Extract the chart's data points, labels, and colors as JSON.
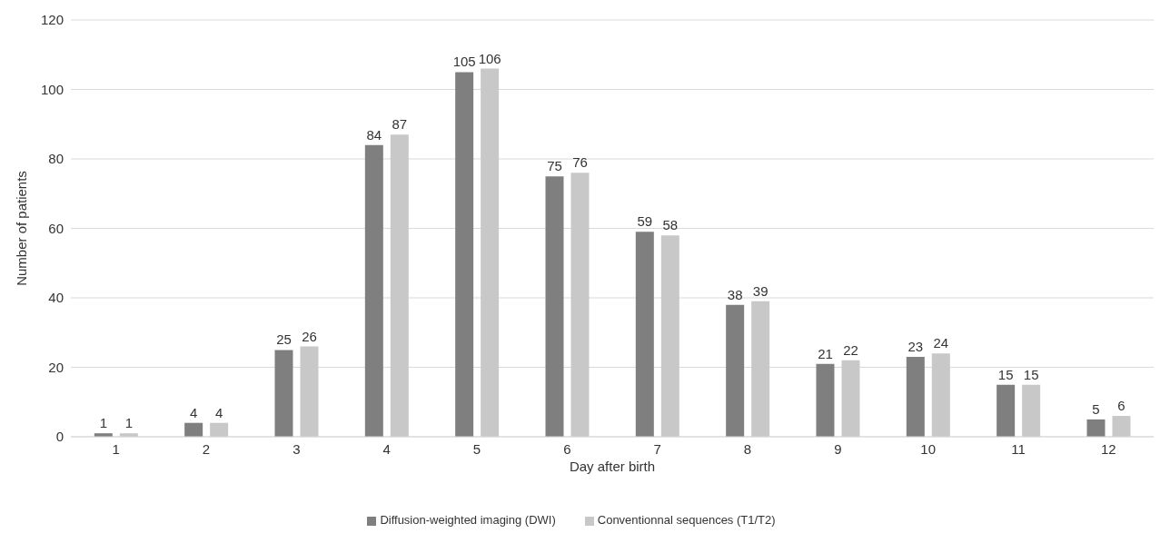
{
  "chart_data": {
    "type": "bar",
    "xlabel": "Day after birth",
    "ylabel": "Number of patients",
    "categories": [
      "1",
      "2",
      "3",
      "4",
      "5",
      "6",
      "7",
      "8",
      "9",
      "10",
      "11",
      "12"
    ],
    "series": [
      {
        "name": "Diffusion-weighted imaging (DWI)",
        "color": "#7f7f7f",
        "values": [
          1,
          4,
          25,
          84,
          105,
          75,
          59,
          38,
          21,
          23,
          15,
          5
        ]
      },
      {
        "name": "Conventionnal sequences (T1/T2)",
        "color": "#c8c8c8",
        "values": [
          1,
          4,
          26,
          87,
          106,
          76,
          58,
          39,
          22,
          24,
          15,
          6
        ]
      }
    ],
    "ylim": [
      0,
      120
    ],
    "yticks": [
      0,
      20,
      40,
      60,
      80,
      100,
      120
    ],
    "grid": "y",
    "legend": "bottom",
    "data_labels": true
  }
}
